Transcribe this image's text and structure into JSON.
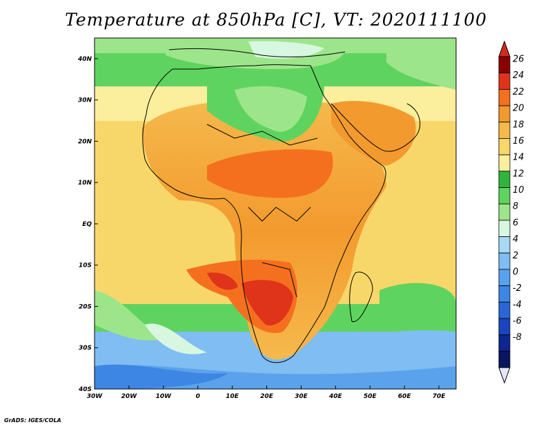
{
  "title": "Temperature at 850hPa [C], VT: 2020111100",
  "credit": "GrADS: IGES/COLA",
  "map": {
    "projection": "lat-lon",
    "lon_range": [
      -30,
      75
    ],
    "lat_range": [
      -40,
      45
    ],
    "lon_ticks": [
      "30W",
      "20W",
      "10W",
      "0",
      "10E",
      "20E",
      "30E",
      "40E",
      "50E",
      "60E",
      "70E"
    ],
    "lat_ticks": [
      "40N",
      "30N",
      "20N",
      "10N",
      "EQ",
      "10S",
      "20S",
      "30S",
      "40S"
    ]
  },
  "colorbar": {
    "levels": [
      "26",
      "24",
      "22",
      "20",
      "18",
      "16",
      "14",
      "12",
      "10",
      "8",
      "6",
      "4",
      "2",
      "0",
      "-2",
      "-4",
      "-6",
      "-8"
    ],
    "colors": [
      "#8b0000",
      "#e0341a",
      "#f5701e",
      "#f39a2e",
      "#f5b94c",
      "#f8d76a",
      "#fbee9c",
      "#2fb53c",
      "#5fd35f",
      "#9de58a",
      "#d8f7e0",
      "#a8d8f5",
      "#7fbdf2",
      "#5aa3ec",
      "#3d86e4",
      "#2a66d8",
      "#1b44c0",
      "#0e2692",
      "#0a1560"
    ],
    "over_color": "#d32a1e",
    "under_color": "#e6e6ff"
  }
}
